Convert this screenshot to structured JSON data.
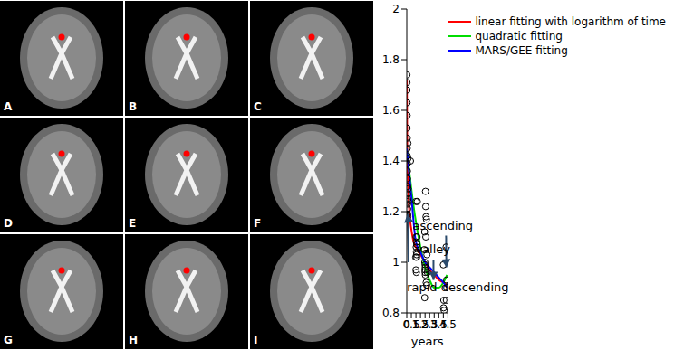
{
  "image_panels": {
    "labels": [
      "A",
      "B",
      "C",
      "D",
      "E",
      "F",
      "G",
      "H",
      "I"
    ]
  },
  "chart_data": {
    "type": "scatter",
    "x_label": "years",
    "xlim": [
      0,
      4.5
    ],
    "xticks": [
      0,
      0.5,
      1,
      1.5,
      2,
      2.5,
      3,
      3.5,
      4,
      4.5
    ],
    "ylim": [
      0.8,
      2
    ],
    "yticks": [
      0.8,
      1,
      1.2,
      1.4,
      1.6,
      1.8,
      2
    ],
    "legend": "upper right",
    "points": {
      "color": "#000000",
      "marker": "circle",
      "x": [
        0.02,
        0.02,
        0.03,
        0.03,
        0.04,
        0.04,
        0.05,
        0.05,
        0.06,
        0.06,
        0.07,
        0.07,
        0.08,
        0.08,
        0.09,
        0.09,
        0.1,
        0.1,
        0.11,
        0.12,
        0.13,
        0.14,
        0.15,
        0.4,
        0.98,
        1.0,
        1.02,
        1.03,
        1.05,
        1.06,
        1.08,
        1.1,
        1.12,
        1.15,
        1.05,
        1.0,
        1.08,
        1.92,
        1.95,
        1.97,
        1.98,
        2.0,
        2.02,
        2.03,
        2.05,
        2.07,
        2.1,
        2.12,
        2.15,
        2.18,
        2.2,
        2.0,
        1.96,
        2.08,
        2.25,
        4.0,
        4.02,
        4.05,
        4.08,
        4.3,
        4.33,
        4.35,
        4.38
      ],
      "values": [
        1.74,
        1.71,
        1.68,
        1.63,
        1.58,
        1.53,
        1.49,
        1.45,
        1.42,
        1.39,
        1.36,
        1.33,
        1.3,
        1.27,
        1.25,
        1.23,
        1.21,
        1.19,
        1.18,
        1.47,
        1.41,
        1.29,
        1.24,
        1.4,
        1.02,
        1.24,
        1.1,
        1.06,
        1.08,
        1.04,
        1.03,
        1.07,
        1.1,
        1.24,
        0.96,
        0.97,
        1.02,
        1.05,
        1.12,
        1.0,
        0.97,
        0.96,
        0.98,
        0.95,
        1.28,
        1.22,
        1.18,
        0.92,
        1.17,
        0.91,
        1.03,
        0.99,
        0.86,
        1.1,
        0.96,
        0.99,
        0.82,
        0.85,
        0.81,
        1.06,
        0.85,
        0.93,
        0.9
      ]
    },
    "series": [
      {
        "name": "linear fitting with logarithm of time",
        "color": "#ff0000",
        "line_style": "solid",
        "x": [
          0.01,
          0.05,
          0.1,
          0.2,
          0.3,
          0.5,
          0.75,
          1,
          1.5,
          2,
          2.5,
          3,
          3.5,
          4,
          4.4
        ],
        "values": [
          1.72,
          1.45,
          1.35,
          1.25,
          1.19,
          1.13,
          1.08,
          1.06,
          1.03,
          1.0,
          0.97,
          0.95,
          0.93,
          0.92,
          0.91
        ]
      },
      {
        "name": "quadratic fitting",
        "color": "#00dd00",
        "line_style": "solid",
        "x": [
          0,
          0.5,
          1,
          1.5,
          2,
          2.5,
          3,
          3.5,
          4,
          4.4
        ],
        "values": [
          1.45,
          1.29,
          1.16,
          1.06,
          0.98,
          0.93,
          0.9,
          0.9,
          0.92,
          0.95
        ]
      },
      {
        "name": "MARS/GEE fitting",
        "color": "#0000ff",
        "line_style": "solid",
        "x": [
          0,
          0.5,
          1,
          1.5,
          2,
          2.5,
          3,
          3.5,
          4,
          4.4
        ],
        "values": [
          1.45,
          1.26,
          1.08,
          1.04,
          1.0,
          0.98,
          0.96,
          0.94,
          0.92,
          0.9
        ]
      }
    ],
    "annotations": [
      {
        "text": "rapid descending",
        "x": 0.02,
        "y": 0.9,
        "arrow_from": [
          0.2,
          1.0
        ],
        "arrow_to": [
          0.09,
          1.19
        ]
      },
      {
        "text": "valley",
        "x": 2.85,
        "y": 1.05,
        "arrow_from": [
          2.92,
          1.01
        ],
        "arrow_to": [
          2.92,
          0.93
        ]
      },
      {
        "text": "ascending",
        "x": 3.95,
        "y": 1.14,
        "arrow_from": [
          4.3,
          1.105
        ],
        "arrow_to": [
          4.33,
          0.98
        ]
      }
    ]
  }
}
